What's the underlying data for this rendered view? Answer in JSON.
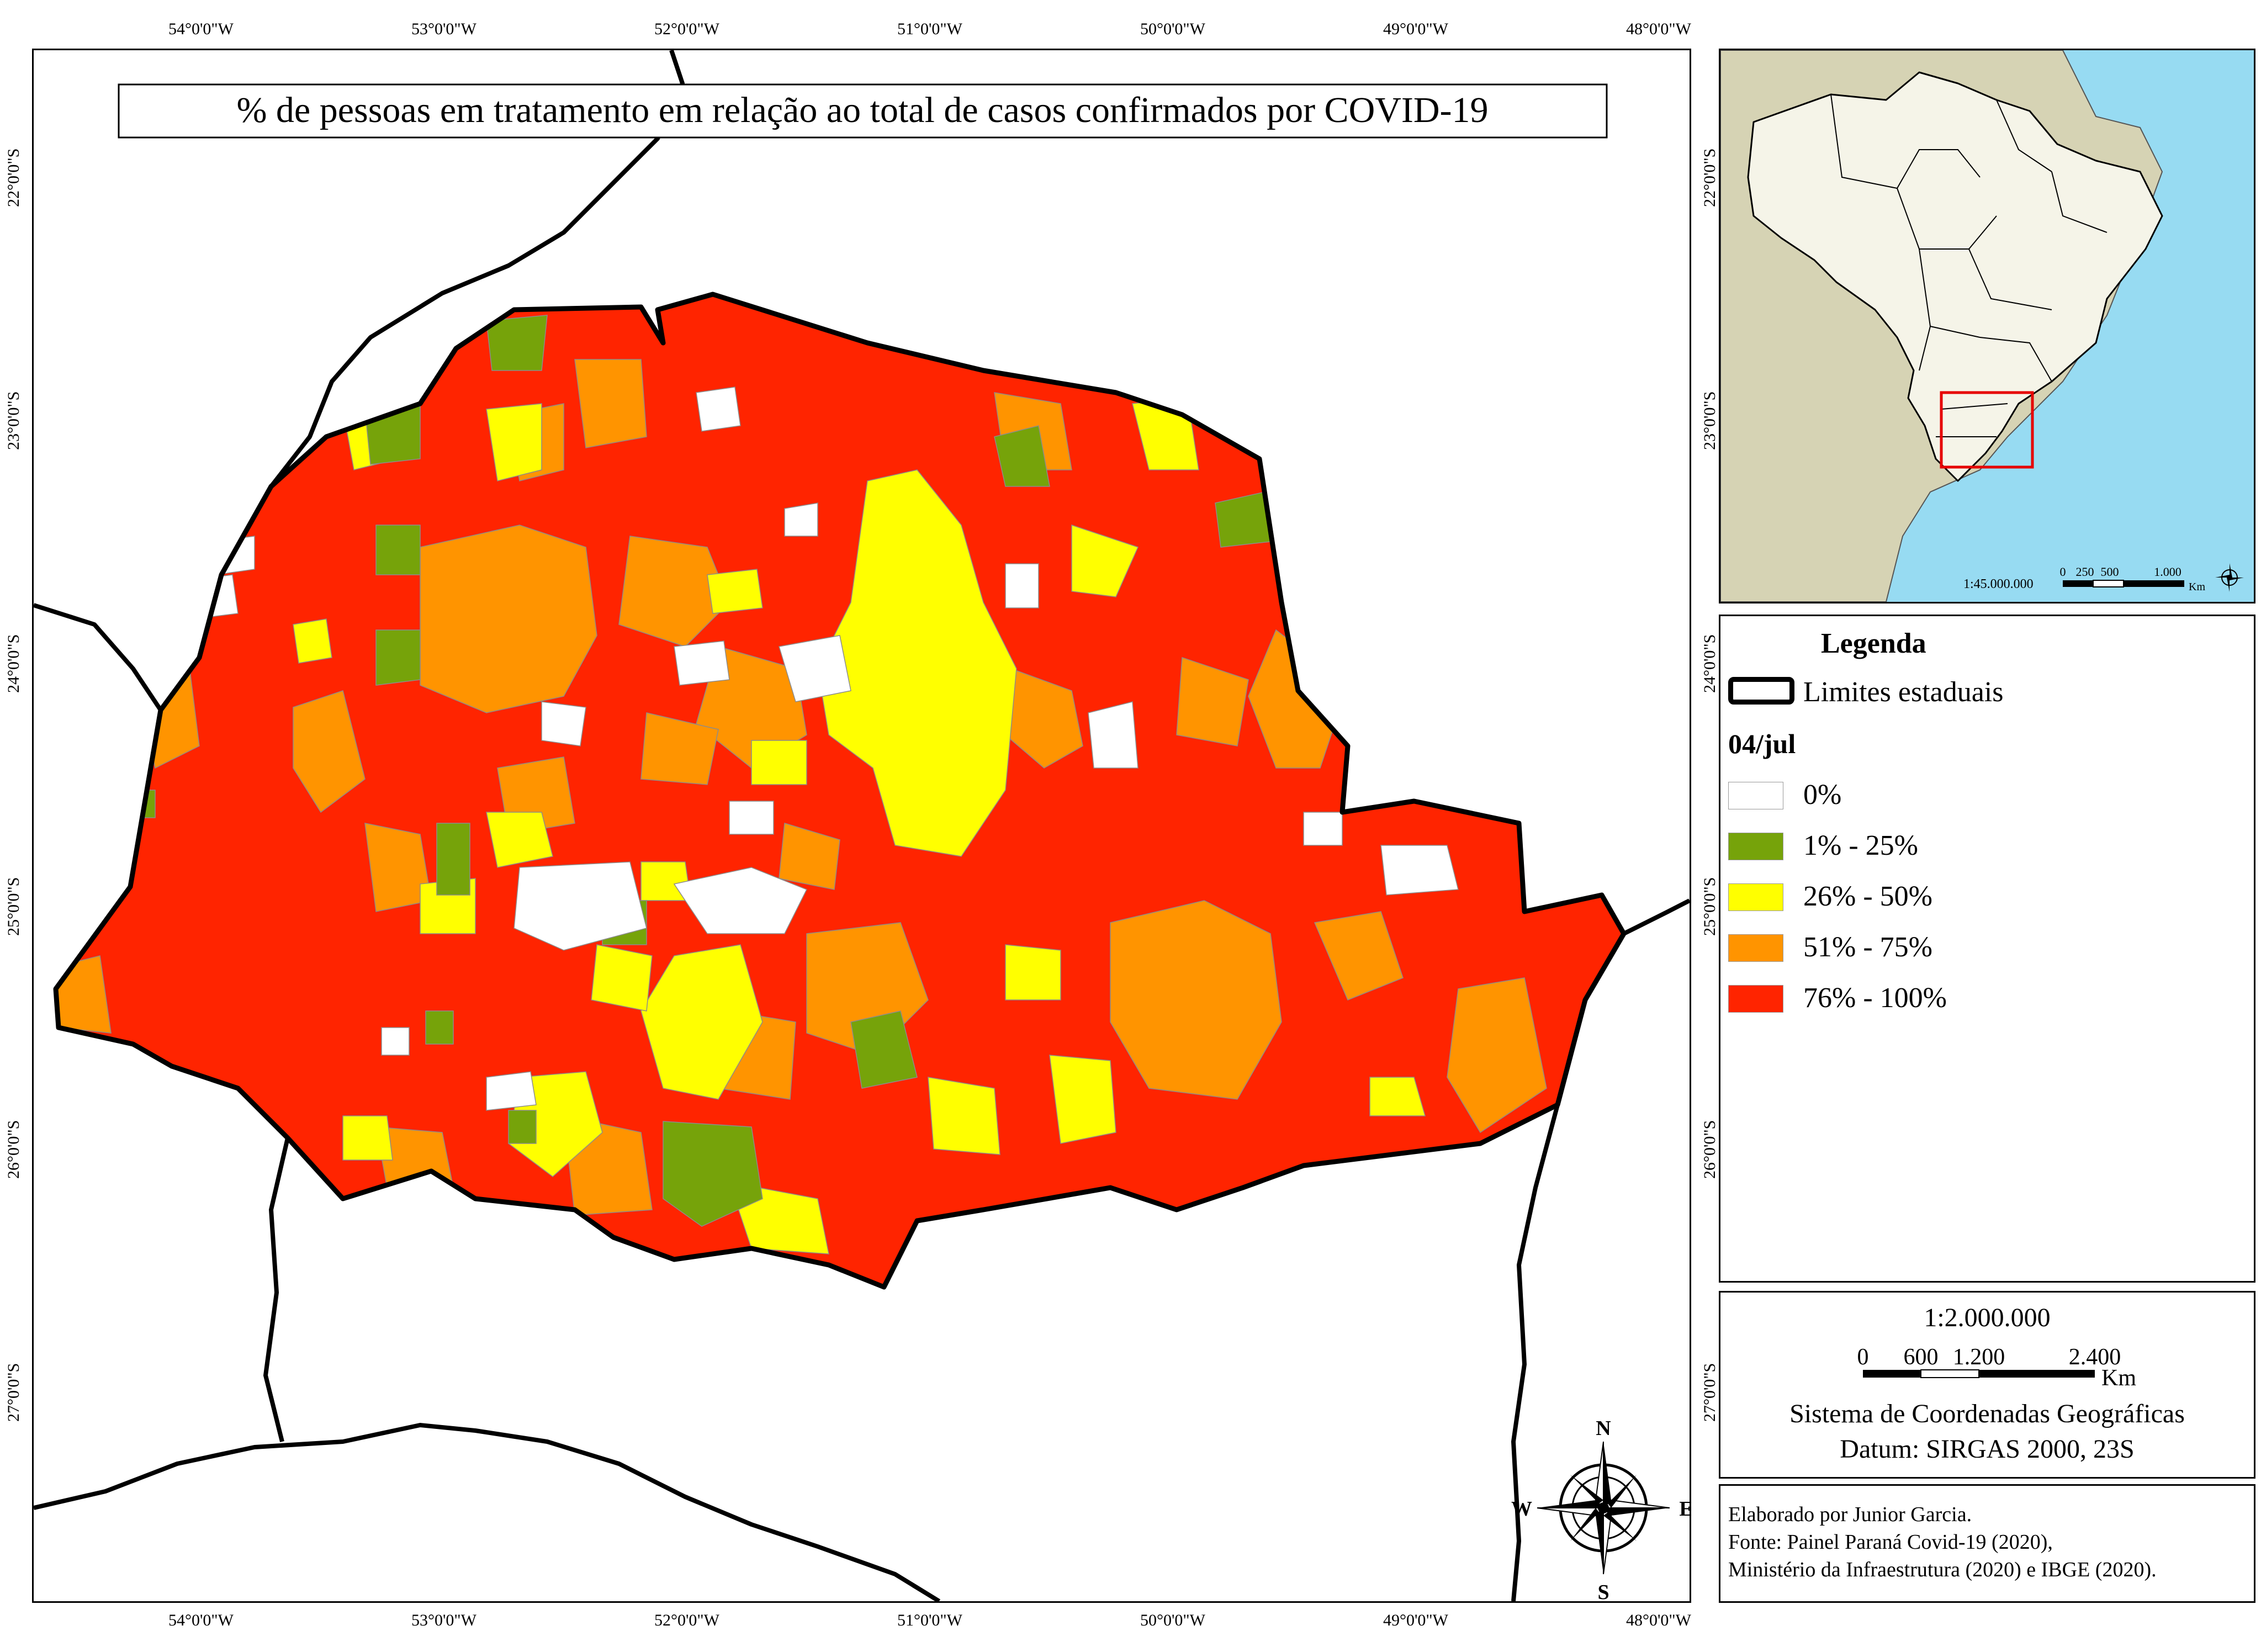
{
  "map": {
    "title": "% de pessoas em tratamento em relação ao total de casos confirmados por COVID-19",
    "lon_ticks": [
      "54°0'0\"W",
      "53°0'0\"W",
      "52°0'0\"W",
      "51°0'0\"W",
      "50°0'0\"W",
      "49°0'0\"W",
      "48°0'0\"W"
    ],
    "lat_ticks": [
      "22°0'0\"S",
      "23°0'0\"S",
      "24°0'0\"S",
      "25°0'0\"S",
      "26°0'0\"S",
      "27°0'0\"S"
    ],
    "colors": {
      "c0": "#ffffff",
      "c1": "#76a30a",
      "c2": "#ffff00",
      "c3": "#ff9400",
      "c4": "#ff2400"
    }
  },
  "inset": {
    "scale": "1:45.000.000",
    "scale_ticks": [
      "0",
      "250",
      "500",
      "1.000"
    ],
    "scale_unit": "Km",
    "colors": {
      "ocean": "#97dbf2",
      "land": "#d6d3b4",
      "brazil": "#f5f4e8",
      "highlight": "#e60000"
    }
  },
  "legend": {
    "title": "Legenda",
    "boundary_label": "Limites estaduais",
    "date": "04/jul",
    "items": [
      {
        "label": "0%",
        "color": "#ffffff"
      },
      {
        "label": "1% - 25%",
        "color": "#76a30a"
      },
      {
        "label": "26% - 50%",
        "color": "#ffff00"
      },
      {
        "label": "51% - 75%",
        "color": "#ff9400"
      },
      {
        "label": "76% - 100%",
        "color": "#ff2400"
      }
    ]
  },
  "scalebox": {
    "scale": "1:2.000.000",
    "ticks": [
      "0",
      "600",
      "1.200",
      "2.400"
    ],
    "unit": "Km",
    "crs": "Sistema de Coordenadas Geográficas",
    "datum": "Datum: SIRGAS 2000, 23S"
  },
  "compass": {
    "n": "N",
    "s": "S",
    "e": "E",
    "w": "W"
  },
  "credits": {
    "line1": "Elaborado por Junior Garcia.",
    "line2": "Fonte: Painel Paraná Covid-19 (2020),",
    "line3": "Ministério da Infraestrutura (2020) e IBGE (2020)."
  }
}
